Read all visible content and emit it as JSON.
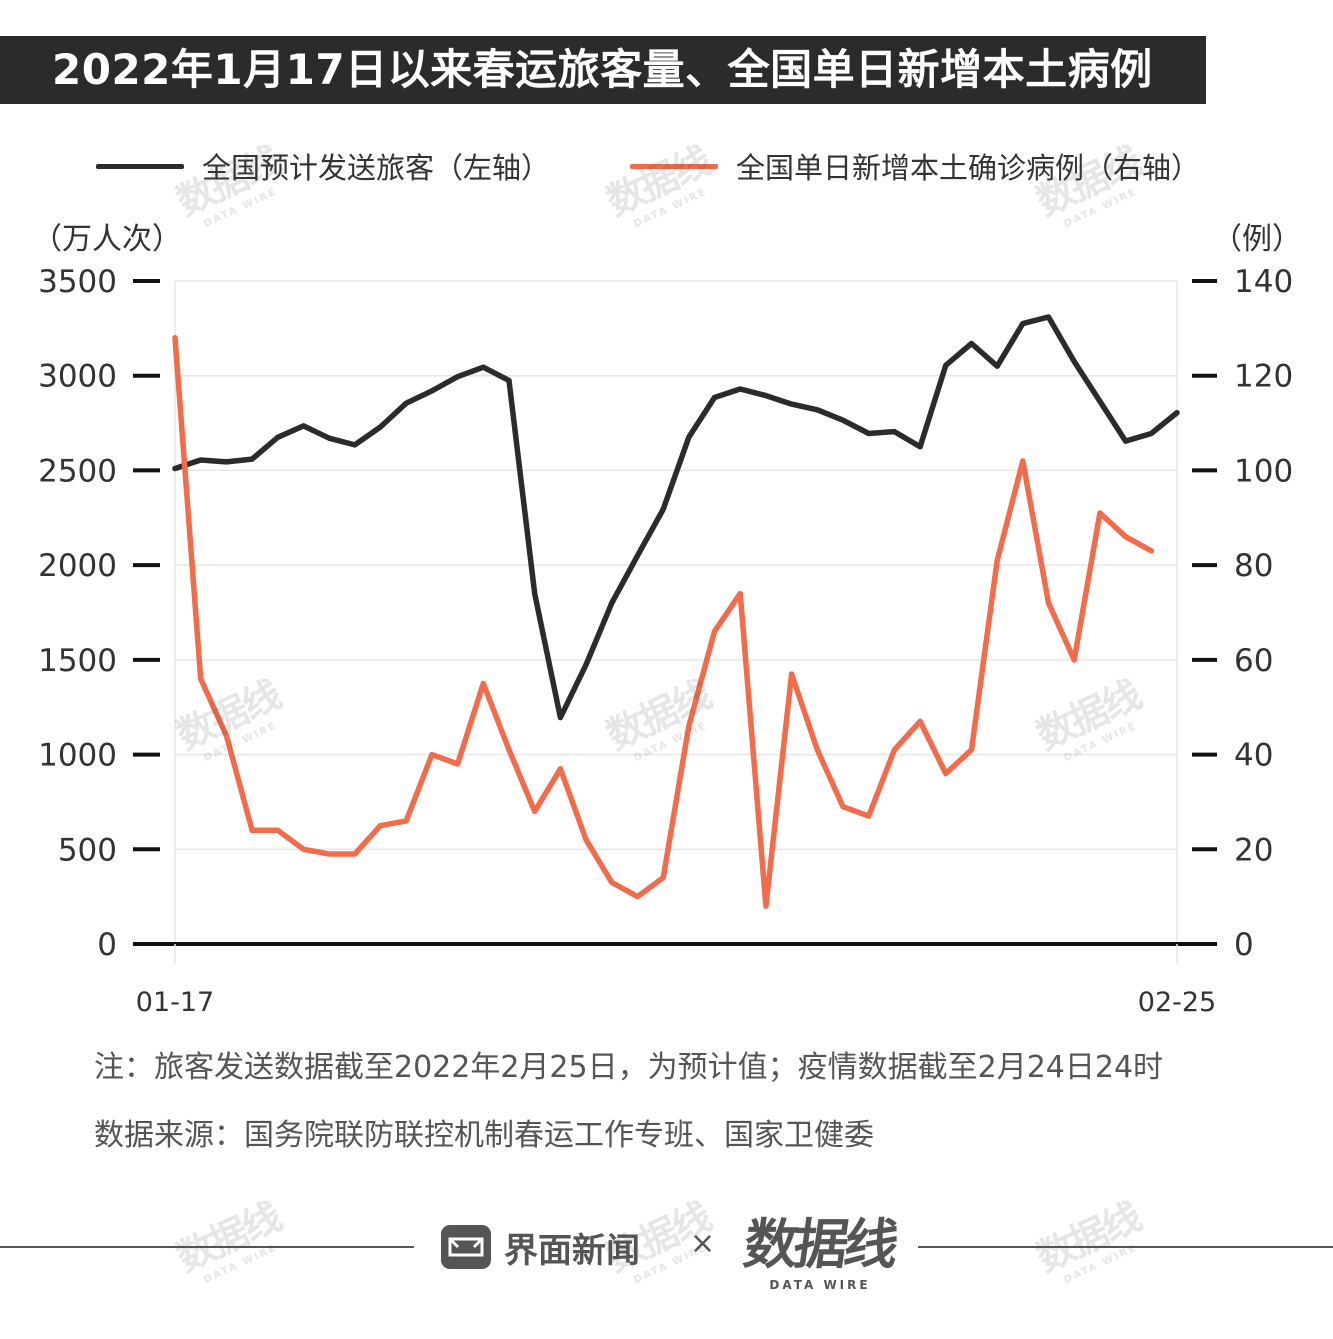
{
  "title": "2022年1月17日以来春运旅客量、全国单日新增本土病例",
  "legend": {
    "left_series": "全国预计发送旅客（左轴）",
    "right_series": "全国单日新增本土确诊病例（右轴）"
  },
  "axis_units": {
    "left": "（万人次）",
    "right": "（例）"
  },
  "colors": {
    "left_series": "#2b2b2b",
    "right_series": "#f26b4a",
    "title_bg": "#2b2b2b",
    "grid": "#e6e6e6"
  },
  "chart_data": {
    "type": "line",
    "title": "2022年1月17日以来春运旅客量、全国单日新增本土病例",
    "x_labels": [
      "01-17",
      "02-25"
    ],
    "x_start": "01-17",
    "x_end": "02-25",
    "n_points": 40,
    "y_left": {
      "label": "万人次",
      "lim": [
        0,
        3500
      ],
      "ticks": [
        0,
        500,
        1000,
        1500,
        2000,
        2500,
        3000,
        3500
      ]
    },
    "y_right": {
      "label": "例",
      "lim": [
        0,
        140
      ],
      "ticks": [
        0,
        20,
        40,
        60,
        80,
        100,
        120,
        140
      ]
    },
    "series": [
      {
        "name": "全国预计发送旅客（左轴）",
        "axis": "left",
        "values": [
          2510,
          2555,
          2545,
          2560,
          2675,
          2735,
          2670,
          2635,
          2730,
          2855,
          2920,
          2995,
          3045,
          2975,
          1850,
          1195,
          1475,
          1800,
          2050,
          2295,
          2675,
          2885,
          2930,
          2895,
          2850,
          2820,
          2765,
          2695,
          2705,
          2625,
          3055,
          3170,
          3050,
          3275,
          3310,
          3075,
          2865,
          2655,
          2695,
          2805
        ]
      },
      {
        "name": "全国单日新增本土确诊病例（右轴）",
        "axis": "right",
        "values": [
          128,
          56,
          44,
          24,
          24,
          20,
          19,
          19,
          25,
          26,
          40,
          38,
          55,
          41,
          28,
          37,
          22,
          13,
          10,
          14,
          46,
          66,
          74,
          8,
          57,
          41,
          29,
          27,
          41,
          47,
          36,
          41,
          81,
          102,
          72,
          60,
          91,
          86,
          83,
          null
        ]
      }
    ],
    "legend_position": "top"
  },
  "footer": {
    "note": "注：旅客发送数据截至2022年2月25日，为预计值；疫情数据截至2月24日24时",
    "source": "数据来源：国务院联防联控机制春运工作专班、国家卫健委",
    "brand_jiemian": "界面新闻",
    "times": "×",
    "brand_datawire": "数据线",
    "brand_datawire_sub": "DATA WIRE"
  },
  "watermark": {
    "text": "数据线",
    "sub": "DATA WIRE"
  }
}
